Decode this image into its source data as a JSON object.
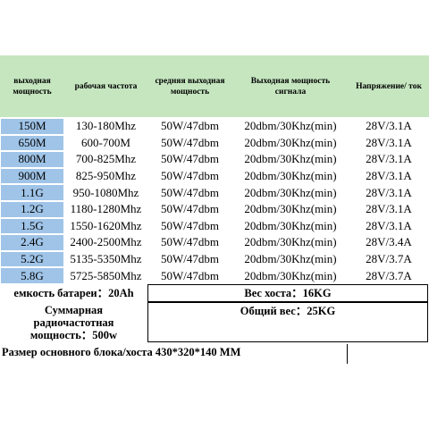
{
  "table": {
    "header": [
      "выходная мощность",
      "рабочая частота",
      "средняя выходная мощность",
      "Выходная мощность сигнала",
      "Напряжение/ ток"
    ],
    "rows": [
      [
        "150M",
        "130-180Mhz",
        "50W/47dbm",
        "20dbm/30Khz(min)",
        "28V/3.1A"
      ],
      [
        "650M",
        "600-700M",
        "50W/47dbm",
        "20dbm/30Khz(min)",
        "28V/3.1A"
      ],
      [
        "800M",
        "700-825Mhz",
        "50W/47dbm",
        "20dbm/30Khz(min)",
        "28V/3.1A"
      ],
      [
        "900M",
        "825-950Mhz",
        "50W/47dbm",
        "20dbm/30Khz(min)",
        "28V/3.1A"
      ],
      [
        "1.1G",
        "950-1080Mhz",
        "50W/47dbm",
        "20dbm/30Khz(min)",
        "28V/3.1A"
      ],
      [
        "1.2G",
        "1180-1280Mhz",
        "50W/47dbm",
        "20dbm/30Khz(min)",
        "28V/3.1A"
      ],
      [
        "1.5G",
        "1550-1620Mhz",
        "50W/47dbm",
        "20dbm/30Khz(min)",
        "28V/3.1A"
      ],
      [
        "2.4G",
        "2400-2500Mhz",
        "50W/47dbm",
        "20dbm/30Khz(min)",
        "28V/3.4A"
      ],
      [
        "5.2G",
        "5135-5350Mhz",
        "50W/47dbm",
        "20dbm/30Khz(min)",
        "28V/3.7A"
      ],
      [
        "5.8G",
        "5725-5850Mhz",
        "50W/47dbm",
        "20dbm/30Khz(min)",
        "28V/3.7A"
      ]
    ]
  },
  "footer": {
    "battery": "емкость батареи：20Ah",
    "host_weight": "Вес хоста：16KG",
    "total_power": "Суммарная радиочастотная мощность：500w",
    "total_weight": "Общий вес：25KG",
    "size": "Размер основного блока/хоста 430*320*140 MM"
  }
}
